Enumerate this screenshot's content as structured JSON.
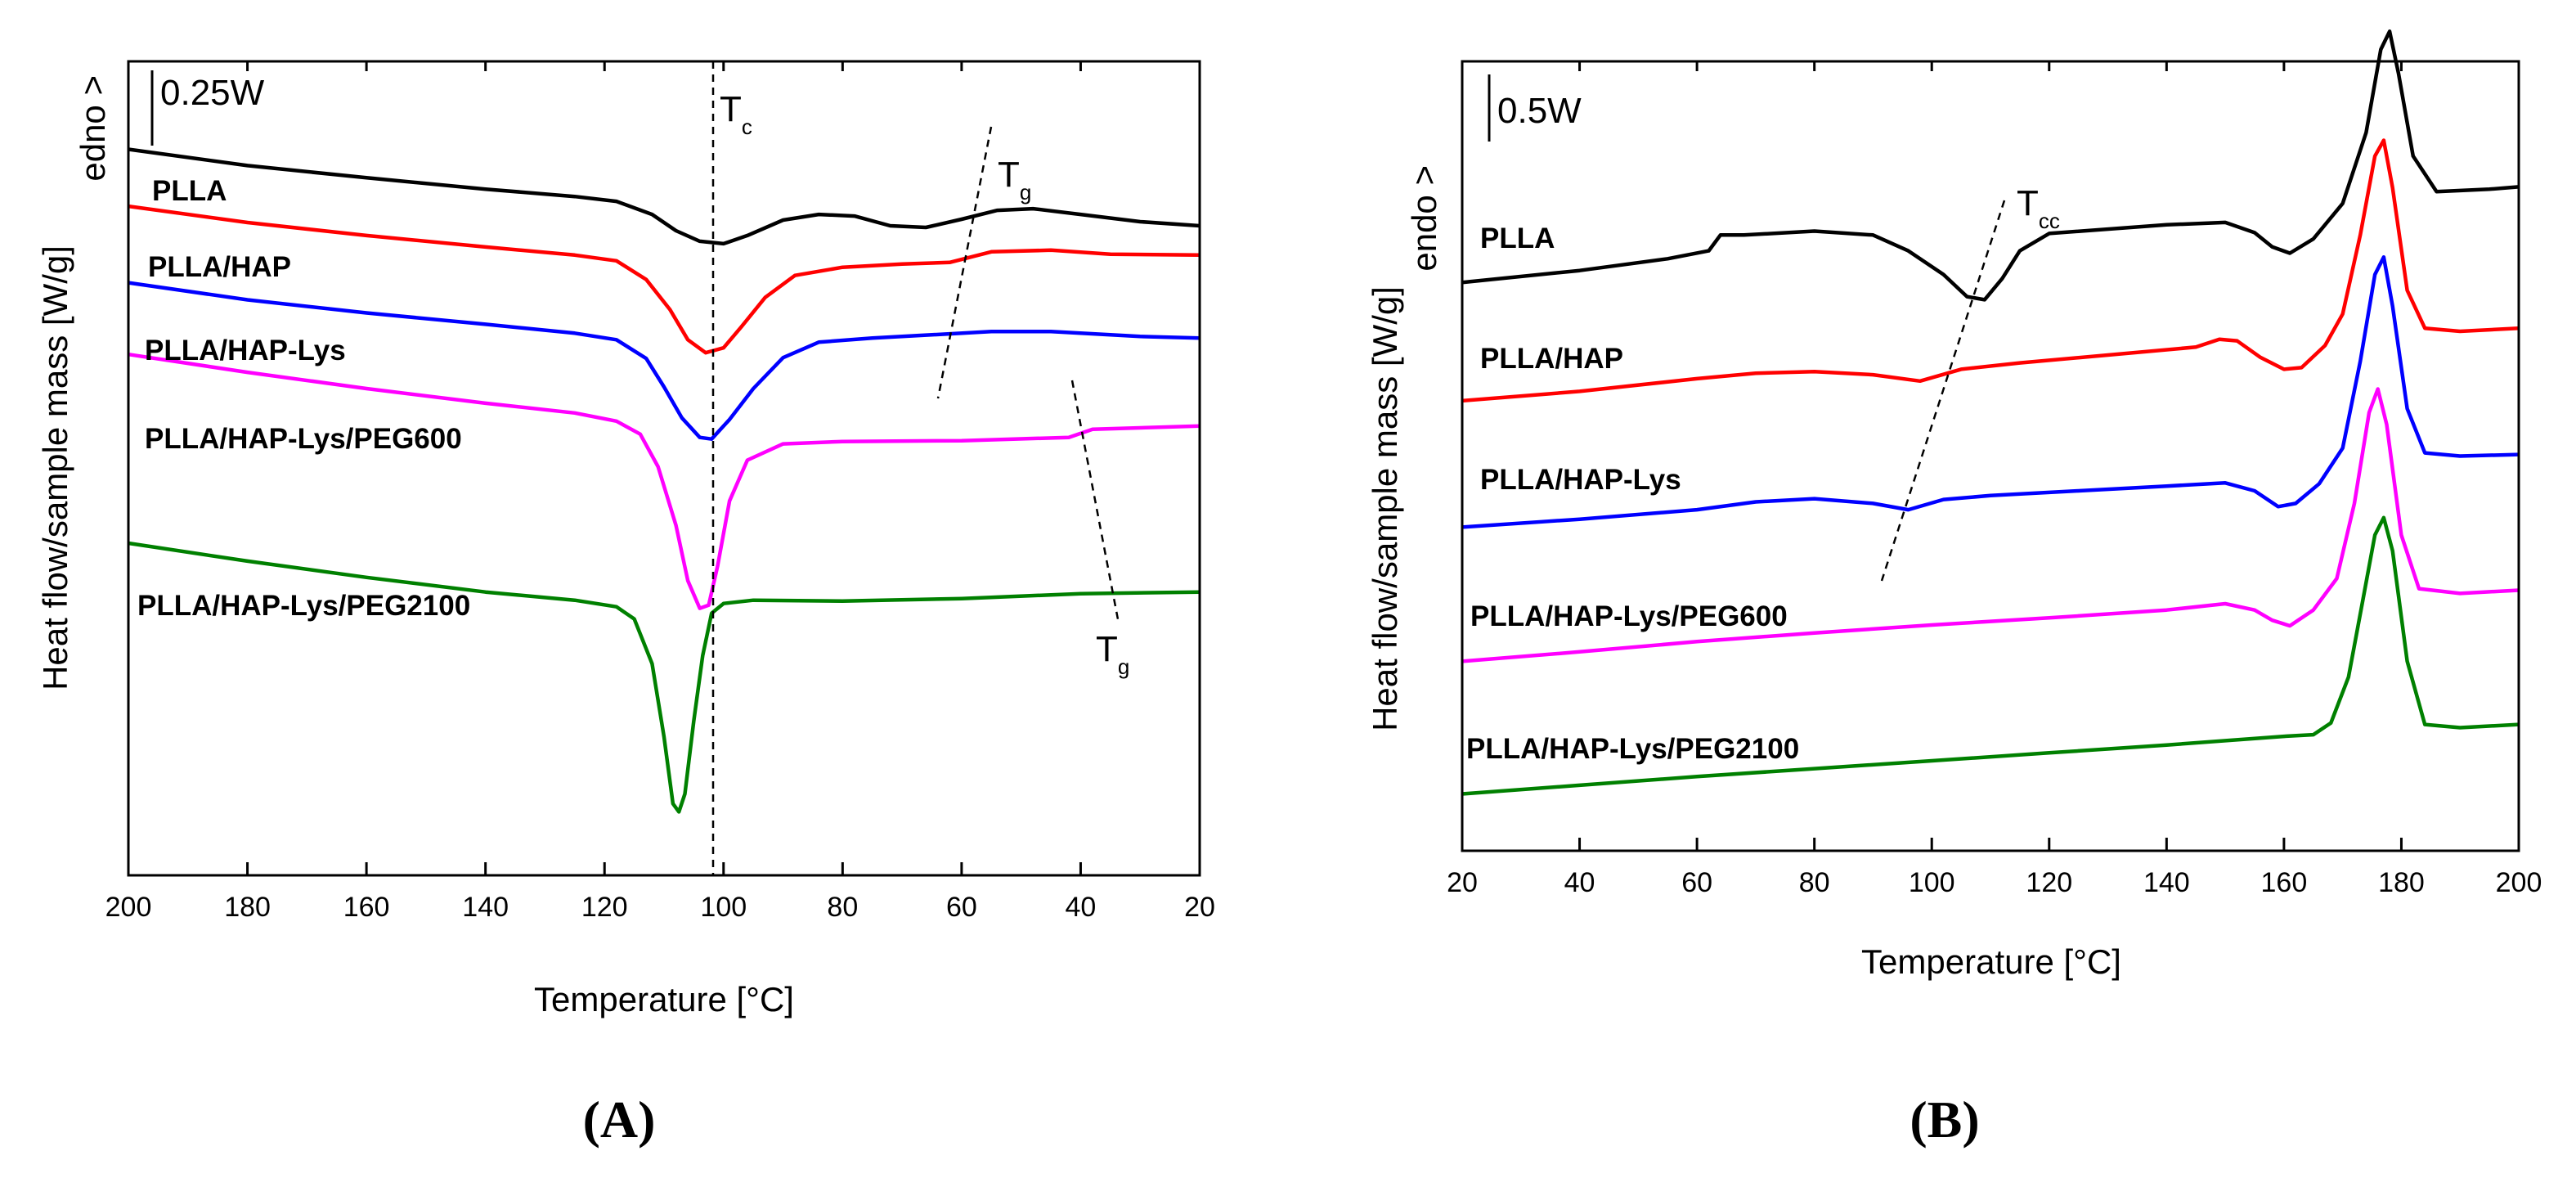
{
  "chart_data": [
    {
      "panel": "(A)",
      "type": "line",
      "title": "",
      "xlabel": "Temperature [°C]",
      "ylabel": "Heat flow/sample mass [W/g]",
      "endo_label": "edno >",
      "scale_bar": "0.25W",
      "xlim": [
        200,
        20
      ],
      "x_reversed": true,
      "ylim": [
        0,
        10
      ],
      "xticks": [
        200,
        180,
        160,
        140,
        120,
        100,
        80,
        60,
        40,
        20
      ],
      "annotations": [
        {
          "text": "T",
          "sub": "c"
        },
        {
          "text": "T",
          "sub": "g"
        },
        {
          "text": "T",
          "sub": "g"
        }
      ],
      "series": [
        {
          "name": "PLLA",
          "color": "#000000",
          "points": [
            [
              200,
              8.92
            ],
            [
              180,
              8.72
            ],
            [
              160,
              8.57
            ],
            [
              140,
              8.43
            ],
            [
              125,
              8.34
            ],
            [
              118,
              8.28
            ],
            [
              112,
              8.12
            ],
            [
              108,
              7.92
            ],
            [
              104,
              7.79
            ],
            [
              100,
              7.76
            ],
            [
              96,
              7.86
            ],
            [
              90,
              8.05
            ],
            [
              84,
              8.12
            ],
            [
              78,
              8.1
            ],
            [
              72,
              7.98
            ],
            [
              66,
              7.96
            ],
            [
              60,
              8.06
            ],
            [
              54,
              8.17
            ],
            [
              48,
              8.19
            ],
            [
              40,
              8.12
            ],
            [
              30,
              8.03
            ],
            [
              20,
              7.98
            ]
          ]
        },
        {
          "name": "PLLA/HAP",
          "color": "#ff0000",
          "points": [
            [
              200,
              8.22
            ],
            [
              180,
              8.02
            ],
            [
              160,
              7.86
            ],
            [
              140,
              7.72
            ],
            [
              125,
              7.62
            ],
            [
              118,
              7.55
            ],
            [
              113,
              7.32
            ],
            [
              109,
              6.95
            ],
            [
              106,
              6.58
            ],
            [
              103,
              6.42
            ],
            [
              100,
              6.48
            ],
            [
              97,
              6.74
            ],
            [
              93,
              7.1
            ],
            [
              88,
              7.37
            ],
            [
              80,
              7.47
            ],
            [
              70,
              7.51
            ],
            [
              62,
              7.53
            ],
            [
              55,
              7.66
            ],
            [
              45,
              7.68
            ],
            [
              35,
              7.63
            ],
            [
              20,
              7.62
            ]
          ]
        },
        {
          "name": "PLLA/HAP-Lys",
          "color": "#0000ff",
          "points": [
            [
              200,
              7.28
            ],
            [
              180,
              7.07
            ],
            [
              160,
              6.91
            ],
            [
              140,
              6.77
            ],
            [
              125,
              6.66
            ],
            [
              118,
              6.58
            ],
            [
              113,
              6.35
            ],
            [
              110,
              6.0
            ],
            [
              107,
              5.62
            ],
            [
              104,
              5.38
            ],
            [
              102,
              5.36
            ],
            [
              99,
              5.6
            ],
            [
              95,
              5.98
            ],
            [
              90,
              6.36
            ],
            [
              84,
              6.55
            ],
            [
              75,
              6.6
            ],
            [
              65,
              6.64
            ],
            [
              55,
              6.68
            ],
            [
              45,
              6.68
            ],
            [
              30,
              6.62
            ],
            [
              20,
              6.6
            ]
          ]
        },
        {
          "name": "PLLA/HAP-Lys/PEG600",
          "color": "#ff00ff",
          "points": [
            [
              200,
              6.4
            ],
            [
              180,
              6.18
            ],
            [
              160,
              5.98
            ],
            [
              140,
              5.8
            ],
            [
              125,
              5.68
            ],
            [
              118,
              5.58
            ],
            [
              114,
              5.42
            ],
            [
              111,
              5.02
            ],
            [
              108,
              4.3
            ],
            [
              106,
              3.62
            ],
            [
              104,
              3.28
            ],
            [
              102.5,
              3.32
            ],
            [
              101,
              3.8
            ],
            [
              99,
              4.6
            ],
            [
              96,
              5.1
            ],
            [
              90,
              5.3
            ],
            [
              80,
              5.33
            ],
            [
              60,
              5.34
            ],
            [
              42,
              5.38
            ],
            [
              38,
              5.48
            ],
            [
              20,
              5.52
            ]
          ]
        },
        {
          "name": "PLLA/HAP-Lys/PEG2100",
          "color": "#008000",
          "points": [
            [
              200,
              4.08
            ],
            [
              180,
              3.86
            ],
            [
              160,
              3.66
            ],
            [
              140,
              3.48
            ],
            [
              125,
              3.38
            ],
            [
              118,
              3.3
            ],
            [
              115,
              3.15
            ],
            [
              112,
              2.6
            ],
            [
              110,
              1.7
            ],
            [
              108.5,
              0.88
            ],
            [
              107.5,
              0.78
            ],
            [
              106.5,
              1.0
            ],
            [
              105,
              1.9
            ],
            [
              103.5,
              2.7
            ],
            [
              102,
              3.22
            ],
            [
              100,
              3.34
            ],
            [
              95,
              3.38
            ],
            [
              80,
              3.37
            ],
            [
              60,
              3.4
            ],
            [
              40,
              3.46
            ],
            [
              20,
              3.48
            ]
          ]
        }
      ]
    },
    {
      "panel": "(B)",
      "type": "line",
      "title": "",
      "xlabel": "Temperature [°C]",
      "ylabel": "Heat flow/sample mass [W/g]",
      "endo_label": "endo >",
      "scale_bar": "0.5W",
      "xlim": [
        20,
        200
      ],
      "x_reversed": false,
      "ylim": [
        0,
        10
      ],
      "xticks": [
        20,
        40,
        60,
        80,
        100,
        120,
        140,
        160,
        180,
        200
      ],
      "annotations": [
        {
          "text": "T",
          "sub": "cc"
        }
      ],
      "series": [
        {
          "name": "PLLA",
          "color": "#000000",
          "points": [
            [
              20,
              7.2
            ],
            [
              40,
              7.35
            ],
            [
              55,
              7.5
            ],
            [
              62,
              7.6
            ],
            [
              64,
              7.8
            ],
            [
              68,
              7.8
            ],
            [
              80,
              7.85
            ],
            [
              90,
              7.8
            ],
            [
              96,
              7.6
            ],
            [
              102,
              7.3
            ],
            [
              106,
              7.02
            ],
            [
              109,
              6.98
            ],
            [
              112,
              7.25
            ],
            [
              115,
              7.6
            ],
            [
              120,
              7.82
            ],
            [
              140,
              7.93
            ],
            [
              150,
              7.96
            ],
            [
              155,
              7.83
            ],
            [
              158,
              7.65
            ],
            [
              161,
              7.57
            ],
            [
              165,
              7.75
            ],
            [
              170,
              8.2
            ],
            [
              174,
              9.1
            ],
            [
              176.5,
              10.15
            ],
            [
              178,
              10.38
            ],
            [
              179.5,
              9.85
            ],
            [
              182,
              8.8
            ],
            [
              186,
              8.35
            ],
            [
              195,
              8.38
            ],
            [
              200,
              8.41
            ]
          ]
        },
        {
          "name": "PLLA/HAP",
          "color": "#ff0000",
          "points": [
            [
              20,
              5.7
            ],
            [
              40,
              5.82
            ],
            [
              60,
              5.98
            ],
            [
              70,
              6.05
            ],
            [
              80,
              6.07
            ],
            [
              90,
              6.03
            ],
            [
              98,
              5.95
            ],
            [
              105,
              6.1
            ],
            [
              115,
              6.18
            ],
            [
              130,
              6.28
            ],
            [
              145,
              6.38
            ],
            [
              149,
              6.48
            ],
            [
              152,
              6.46
            ],
            [
              156,
              6.25
            ],
            [
              160,
              6.1
            ],
            [
              163,
              6.12
            ],
            [
              167,
              6.4
            ],
            [
              170,
              6.8
            ],
            [
              173,
              7.8
            ],
            [
              175.5,
              8.8
            ],
            [
              177,
              9.0
            ],
            [
              178.5,
              8.4
            ],
            [
              181,
              7.1
            ],
            [
              184,
              6.62
            ],
            [
              190,
              6.58
            ],
            [
              200,
              6.62
            ]
          ]
        },
        {
          "name": "PLLA/HAP-Lys",
          "color": "#0000ff",
          "points": [
            [
              20,
              4.1
            ],
            [
              40,
              4.2
            ],
            [
              60,
              4.32
            ],
            [
              70,
              4.42
            ],
            [
              80,
              4.46
            ],
            [
              90,
              4.4
            ],
            [
              96,
              4.32
            ],
            [
              102,
              4.45
            ],
            [
              110,
              4.5
            ],
            [
              125,
              4.56
            ],
            [
              140,
              4.62
            ],
            [
              150,
              4.66
            ],
            [
              155,
              4.56
            ],
            [
              159,
              4.36
            ],
            [
              162,
              4.4
            ],
            [
              166,
              4.65
            ],
            [
              170,
              5.1
            ],
            [
              173,
              6.2
            ],
            [
              175.5,
              7.3
            ],
            [
              177,
              7.52
            ],
            [
              178.5,
              6.9
            ],
            [
              181,
              5.6
            ],
            [
              184,
              5.04
            ],
            [
              190,
              5.0
            ],
            [
              200,
              5.02
            ]
          ]
        },
        {
          "name": "PLLA/HAP-Lys/PEG600",
          "color": "#ff00ff",
          "points": [
            [
              20,
              2.4
            ],
            [
              40,
              2.52
            ],
            [
              60,
              2.65
            ],
            [
              80,
              2.76
            ],
            [
              100,
              2.86
            ],
            [
              120,
              2.95
            ],
            [
              140,
              3.05
            ],
            [
              150,
              3.13
            ],
            [
              155,
              3.05
            ],
            [
              158,
              2.92
            ],
            [
              161,
              2.85
            ],
            [
              165,
              3.05
            ],
            [
              169,
              3.45
            ],
            [
              172,
              4.4
            ],
            [
              174.5,
              5.55
            ],
            [
              176,
              5.85
            ],
            [
              177.5,
              5.4
            ],
            [
              180,
              4.0
            ],
            [
              183,
              3.32
            ],
            [
              190,
              3.26
            ],
            [
              200,
              3.3
            ]
          ]
        },
        {
          "name": "PLLA/HAP-Lys/PEG2100",
          "color": "#008000",
          "points": [
            [
              20,
              0.72
            ],
            [
              40,
              0.83
            ],
            [
              60,
              0.94
            ],
            [
              80,
              1.04
            ],
            [
              100,
              1.14
            ],
            [
              120,
              1.24
            ],
            [
              140,
              1.34
            ],
            [
              160,
              1.45
            ],
            [
              165,
              1.47
            ],
            [
              168,
              1.62
            ],
            [
              171,
              2.2
            ],
            [
              173.5,
              3.2
            ],
            [
              175.5,
              4.0
            ],
            [
              177,
              4.22
            ],
            [
              178.5,
              3.8
            ],
            [
              181,
              2.4
            ],
            [
              184,
              1.6
            ],
            [
              190,
              1.56
            ],
            [
              200,
              1.6
            ]
          ]
        }
      ]
    }
  ]
}
